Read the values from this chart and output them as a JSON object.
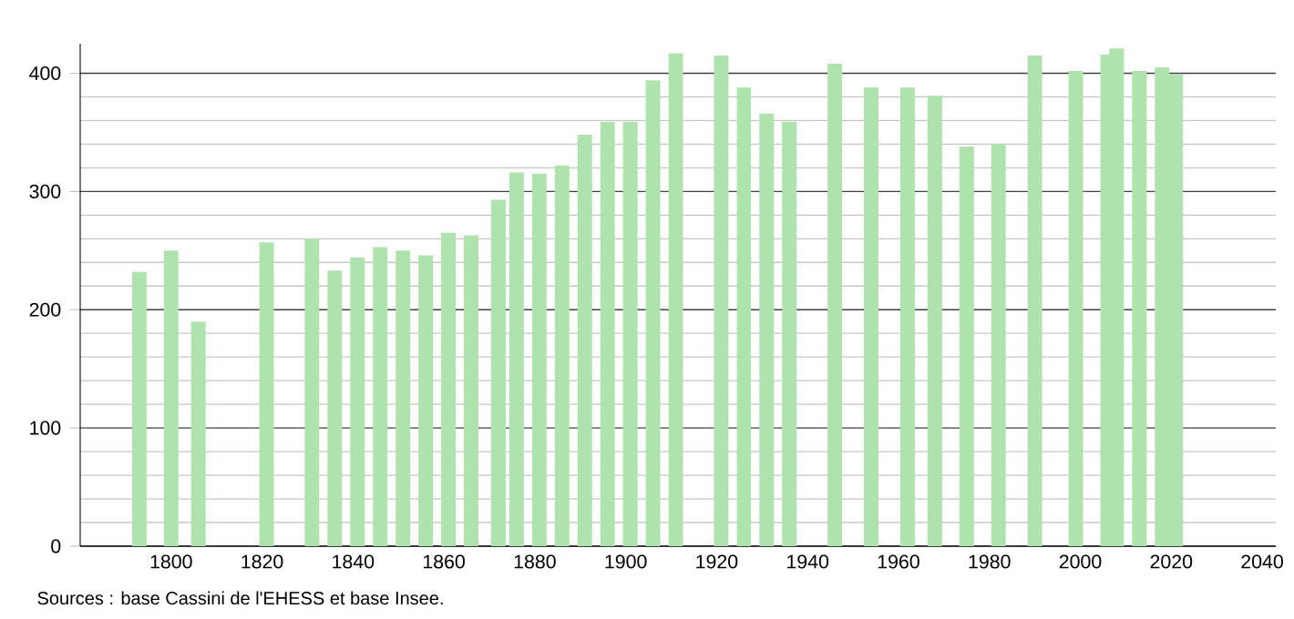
{
  "chart_data": {
    "type": "bar",
    "x": [
      1793,
      1800,
      1806,
      1821,
      1831,
      1836,
      1841,
      1846,
      1851,
      1856,
      1861,
      1866,
      1872,
      1876,
      1881,
      1886,
      1891,
      1896,
      1901,
      1906,
      1911,
      1921,
      1926,
      1931,
      1936,
      1946,
      1954,
      1962,
      1968,
      1975,
      1982,
      1990,
      1999,
      2006,
      2008,
      2013,
      2018,
      2021
    ],
    "values": [
      232,
      250,
      190,
      257,
      260,
      233,
      244,
      253,
      250,
      246,
      265,
      263,
      293,
      316,
      315,
      322,
      348,
      359,
      359,
      394,
      417,
      415,
      388,
      366,
      359,
      408,
      388,
      388,
      381,
      338,
      340,
      415,
      402,
      416,
      421,
      402,
      405,
      399
    ],
    "color": "#aee3ae",
    "xlim": [
      1780,
      2043
    ],
    "ylim": [
      0,
      425
    ],
    "xticks": [
      1800,
      1820,
      1840,
      1860,
      1880,
      1900,
      1920,
      1940,
      1960,
      1980,
      2000,
      2020,
      2040
    ],
    "yticks": [
      0,
      100,
      200,
      300,
      400
    ],
    "grid": "y",
    "annotations": [
      "Sources : base Cassini de l'EHESS et base Insee."
    ]
  }
}
